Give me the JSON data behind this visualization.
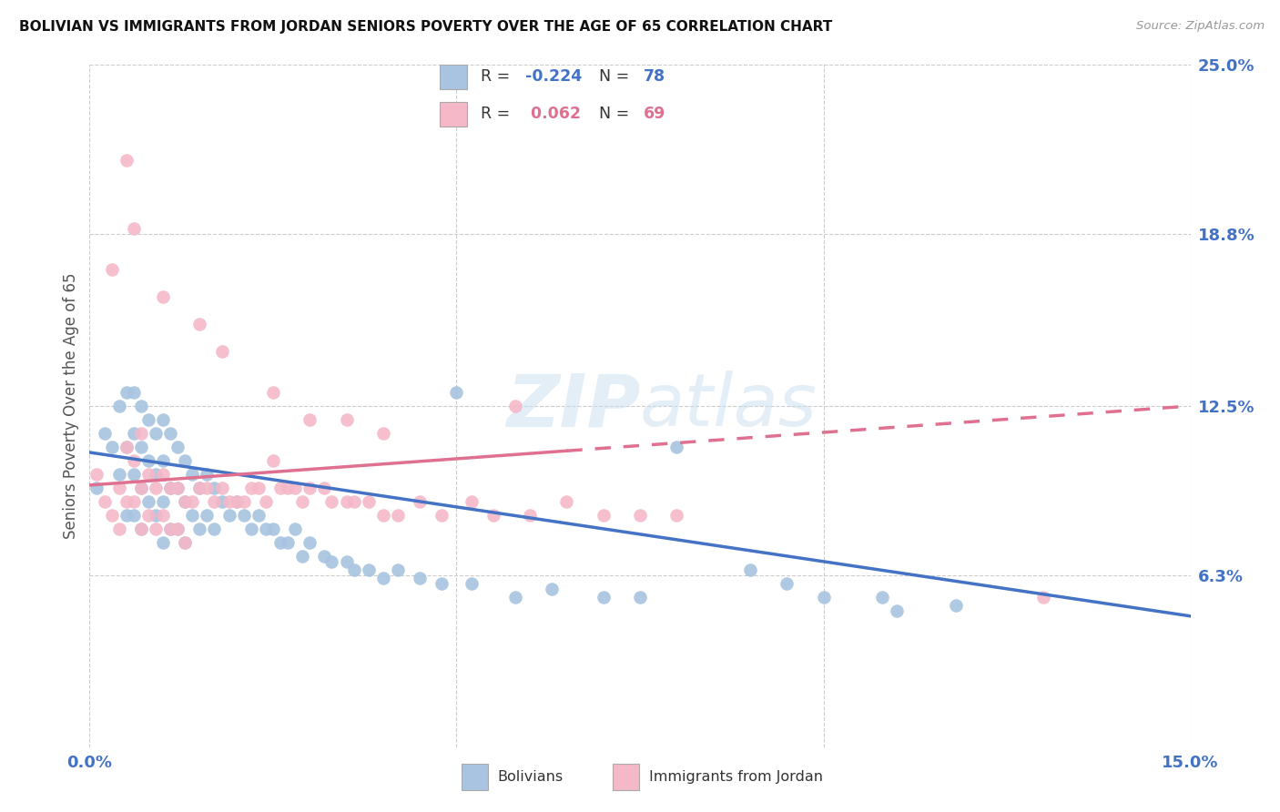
{
  "title": "BOLIVIAN VS IMMIGRANTS FROM JORDAN SENIORS POVERTY OVER THE AGE OF 65 CORRELATION CHART",
  "source": "Source: ZipAtlas.com",
  "ylabel": "Seniors Poverty Over the Age of 65",
  "xlim": [
    0.0,
    0.15
  ],
  "ylim": [
    0.0,
    0.25
  ],
  "xtick_positions": [
    0.0,
    0.15
  ],
  "xtick_labels": [
    "0.0%",
    "15.0%"
  ],
  "ytick_values_right": [
    0.063,
    0.125,
    0.188,
    0.25
  ],
  "ytick_labels_right": [
    "6.3%",
    "12.5%",
    "18.8%",
    "25.0%"
  ],
  "r_bolivian": -0.224,
  "n_bolivian": 78,
  "r_jordan": 0.062,
  "n_jordan": 69,
  "color_bolivian": "#a8c4e0",
  "color_jordan": "#f4b8c8",
  "line_color_bolivian": "#4472c4",
  "line_color_jordan": "#e07090",
  "legend_label_bolivian": "Bolivians",
  "legend_label_jordan": "Immigrants from Jordan",
  "background_color": "#ffffff",
  "tick_color": "#4472c4",
  "grid_color": "#cccccc",
  "title_color": "#111111",
  "source_color": "#999999",
  "ylabel_color": "#555555",
  "watermark_color": "#c8dff0",
  "watermark_alpha": 0.5,
  "line_dash_start": 0.065,
  "bol_line_x0": 0.0,
  "bol_line_x1": 0.15,
  "bol_line_y0": 0.108,
  "bol_line_y1": 0.048,
  "jor_line_x0": 0.0,
  "jor_line_x1": 0.15,
  "jor_line_y0": 0.096,
  "jor_line_y1": 0.125,
  "scatter_bolivian_x": [
    0.001,
    0.002,
    0.003,
    0.004,
    0.004,
    0.005,
    0.005,
    0.005,
    0.006,
    0.006,
    0.006,
    0.006,
    0.007,
    0.007,
    0.007,
    0.007,
    0.008,
    0.008,
    0.008,
    0.009,
    0.009,
    0.009,
    0.01,
    0.01,
    0.01,
    0.01,
    0.011,
    0.011,
    0.011,
    0.012,
    0.012,
    0.012,
    0.013,
    0.013,
    0.013,
    0.014,
    0.014,
    0.015,
    0.015,
    0.016,
    0.016,
    0.017,
    0.017,
    0.018,
    0.019,
    0.02,
    0.021,
    0.022,
    0.023,
    0.024,
    0.025,
    0.026,
    0.027,
    0.028,
    0.029,
    0.03,
    0.032,
    0.033,
    0.035,
    0.036,
    0.038,
    0.04,
    0.042,
    0.045,
    0.048,
    0.052,
    0.058,
    0.063,
    0.07,
    0.075,
    0.08,
    0.09,
    0.095,
    0.1,
    0.108,
    0.11,
    0.118,
    0.05
  ],
  "scatter_bolivian_y": [
    0.095,
    0.115,
    0.11,
    0.125,
    0.1,
    0.13,
    0.11,
    0.085,
    0.13,
    0.115,
    0.1,
    0.085,
    0.125,
    0.11,
    0.095,
    0.08,
    0.12,
    0.105,
    0.09,
    0.115,
    0.1,
    0.085,
    0.12,
    0.105,
    0.09,
    0.075,
    0.115,
    0.095,
    0.08,
    0.11,
    0.095,
    0.08,
    0.105,
    0.09,
    0.075,
    0.1,
    0.085,
    0.095,
    0.08,
    0.1,
    0.085,
    0.095,
    0.08,
    0.09,
    0.085,
    0.09,
    0.085,
    0.08,
    0.085,
    0.08,
    0.08,
    0.075,
    0.075,
    0.08,
    0.07,
    0.075,
    0.07,
    0.068,
    0.068,
    0.065,
    0.065,
    0.062,
    0.065,
    0.062,
    0.06,
    0.06,
    0.055,
    0.058,
    0.055,
    0.055,
    0.11,
    0.065,
    0.06,
    0.055,
    0.055,
    0.05,
    0.052,
    0.13
  ],
  "scatter_jordan_x": [
    0.001,
    0.002,
    0.003,
    0.004,
    0.004,
    0.005,
    0.005,
    0.006,
    0.006,
    0.007,
    0.007,
    0.007,
    0.008,
    0.008,
    0.009,
    0.009,
    0.01,
    0.01,
    0.011,
    0.011,
    0.012,
    0.012,
    0.013,
    0.013,
    0.014,
    0.015,
    0.016,
    0.017,
    0.018,
    0.019,
    0.02,
    0.021,
    0.022,
    0.023,
    0.024,
    0.025,
    0.026,
    0.027,
    0.028,
    0.029,
    0.03,
    0.032,
    0.033,
    0.035,
    0.036,
    0.038,
    0.04,
    0.042,
    0.045,
    0.048,
    0.052,
    0.055,
    0.06,
    0.065,
    0.07,
    0.075,
    0.08,
    0.005,
    0.006,
    0.01,
    0.015,
    0.018,
    0.025,
    0.03,
    0.035,
    0.04,
    0.058,
    0.003,
    0.13
  ],
  "scatter_jordan_y": [
    0.1,
    0.09,
    0.085,
    0.095,
    0.08,
    0.11,
    0.09,
    0.105,
    0.09,
    0.115,
    0.095,
    0.08,
    0.1,
    0.085,
    0.095,
    0.08,
    0.1,
    0.085,
    0.095,
    0.08,
    0.095,
    0.08,
    0.09,
    0.075,
    0.09,
    0.095,
    0.095,
    0.09,
    0.095,
    0.09,
    0.09,
    0.09,
    0.095,
    0.095,
    0.09,
    0.105,
    0.095,
    0.095,
    0.095,
    0.09,
    0.095,
    0.095,
    0.09,
    0.09,
    0.09,
    0.09,
    0.085,
    0.085,
    0.09,
    0.085,
    0.09,
    0.085,
    0.085,
    0.09,
    0.085,
    0.085,
    0.085,
    0.215,
    0.19,
    0.165,
    0.155,
    0.145,
    0.13,
    0.12,
    0.12,
    0.115,
    0.125,
    0.175,
    0.055
  ]
}
